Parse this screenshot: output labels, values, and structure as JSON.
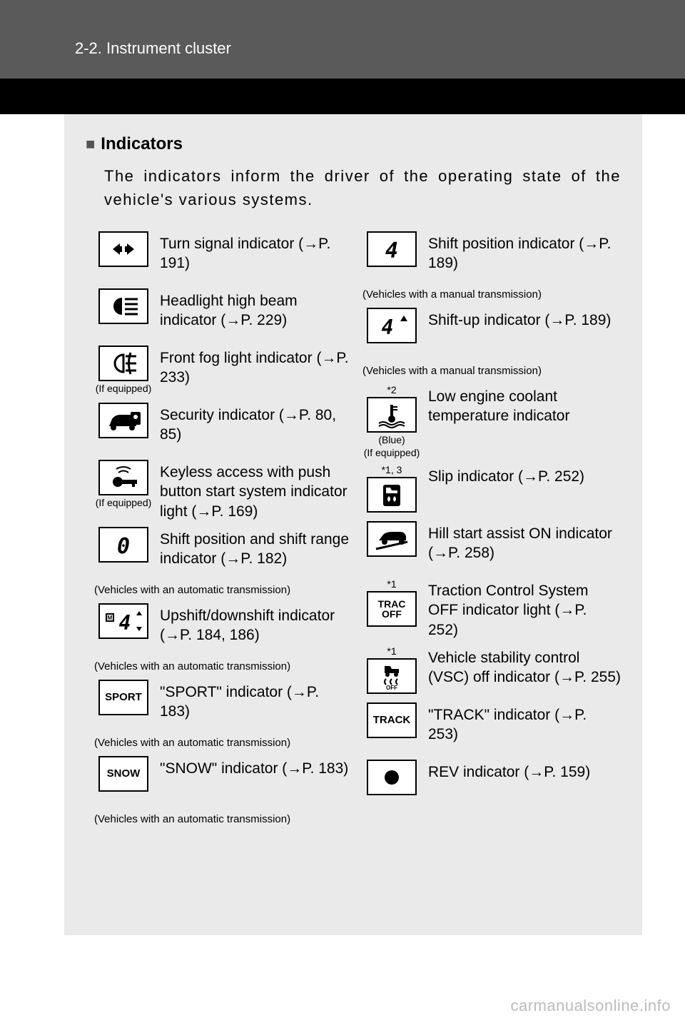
{
  "header": {
    "section_number": "2-2. Instrument cluster"
  },
  "title": "Indicators",
  "intro": "The indicators inform the driver of the operating state of the vehicle's various systems.",
  "colors": {
    "header_bg": "#5a5a5a",
    "black_band": "#000000",
    "panel_bg": "#eaeaea",
    "text": "#000000",
    "watermark": "#bbbbbb"
  },
  "left_items": [
    {
      "icon": "turn-signal",
      "label": "Turn signal indicator (→P. 191)",
      "caption": ""
    },
    {
      "icon": "high-beam",
      "label": "Headlight high beam indicator (→P. 229)",
      "caption": ""
    },
    {
      "icon": "fog",
      "label": "Front fog light indicator (→P. 233)",
      "caption": "",
      "sub": "(If equipped)"
    },
    {
      "icon": "security",
      "label": "Security indicator (→P. 80, 85)",
      "caption": ""
    },
    {
      "icon": "keyless",
      "label": "Keyless access with push button start system indicator light (→P. 169)",
      "caption": "",
      "sub": "(If equipped)"
    },
    {
      "icon": "shift-range",
      "label": "Shift position and shift range indicator (→P. 182)",
      "caption": "(Vehicles with an automatic transmission)"
    },
    {
      "icon": "upshift",
      "label": "Upshift/downshift indicator (→P. 184, 186)",
      "caption": "(Vehicles with an automatic transmission)"
    },
    {
      "icon": "SPORT",
      "label": "\"SPORT\" indicator (→P. 183)",
      "caption": "(Vehicles with an automatic transmission)"
    },
    {
      "icon": "SNOW",
      "label": "\"SNOW\" indicator  (→P. 183)",
      "caption": "(Vehicles with an automatic transmission)"
    }
  ],
  "right_items": [
    {
      "icon": "shift-pos",
      "label": "Shift position indicator (→P. 189)",
      "caption": "(Vehicles with a manual transmission)"
    },
    {
      "icon": "shift-up",
      "label": "Shift-up indicator  (→P. 189)",
      "caption": "(Vehicles with a manual transmission)"
    },
    {
      "icon": "coolant",
      "label": "Low engine coolant temperature indicator",
      "caption": "",
      "sup": "*2",
      "sub": "(Blue)",
      "sub2": "(If equipped)"
    },
    {
      "icon": "slip",
      "label": "Slip indicator (→P. 252)",
      "caption": "",
      "sup": "*1, 3"
    },
    {
      "icon": "hill",
      "label": "Hill start assist ON indicator (→P. 258)",
      "caption": ""
    },
    {
      "icon": "TRAC OFF",
      "label": "Traction Control System OFF indicator light (→P. 252)",
      "caption": "",
      "sup": "*1"
    },
    {
      "icon": "vsc-off",
      "label": "Vehicle stability control (VSC) off indicator (→P. 255)",
      "caption": "",
      "sup": "*1"
    },
    {
      "icon": "TRACK",
      "label": "\"TRACK\" indicator (→P. 253)",
      "caption": ""
    },
    {
      "icon": "rev",
      "label": "REV indicator (→P. 159)",
      "caption": ""
    }
  ],
  "watermark": "carmanualsonline.info"
}
